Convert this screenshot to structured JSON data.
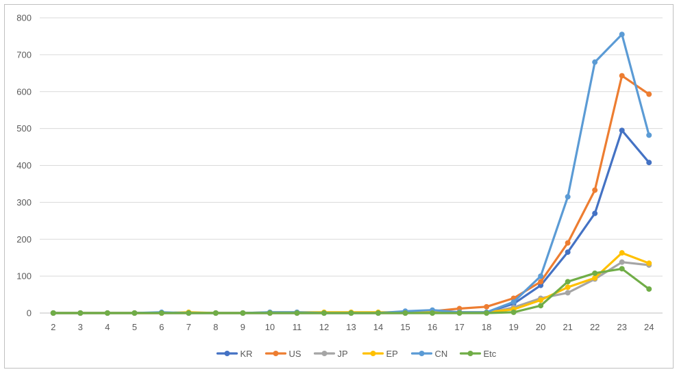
{
  "chart_data": {
    "type": "line",
    "title": "",
    "xlabel": "",
    "ylabel": "",
    "x": [
      "2",
      "3",
      "4",
      "5",
      "6",
      "7",
      "8",
      "9",
      "10",
      "11",
      "12",
      "13",
      "14",
      "15",
      "16",
      "17",
      "18",
      "19",
      "20",
      "21",
      "22",
      "23",
      "24"
    ],
    "ylim": [
      0,
      800
    ],
    "yticks": [
      0,
      100,
      200,
      300,
      400,
      500,
      600,
      700,
      800
    ],
    "grid": true,
    "legend_position": "bottom",
    "series": [
      {
        "name": "KR",
        "color": "#4472c4",
        "values": [
          0,
          0,
          0,
          0,
          0,
          0,
          0,
          0,
          0,
          0,
          0,
          0,
          0,
          0,
          5,
          2,
          2,
          25,
          75,
          165,
          270,
          495,
          408
        ]
      },
      {
        "name": "US",
        "color": "#ed7d31",
        "values": [
          0,
          0,
          0,
          0,
          0,
          0,
          0,
          0,
          0,
          0,
          0,
          0,
          0,
          0,
          5,
          12,
          17,
          40,
          85,
          190,
          333,
          643,
          593
        ]
      },
      {
        "name": "JP",
        "color": "#a5a5a5",
        "values": [
          0,
          0,
          0,
          0,
          0,
          0,
          0,
          0,
          0,
          0,
          0,
          0,
          0,
          0,
          0,
          0,
          0,
          15,
          40,
          55,
          92,
          138,
          130
        ]
      },
      {
        "name": "EP",
        "color": "#ffc000",
        "values": [
          0,
          0,
          0,
          0,
          0,
          2,
          0,
          0,
          2,
          2,
          2,
          2,
          2,
          2,
          2,
          2,
          2,
          10,
          35,
          70,
          95,
          163,
          135
        ]
      },
      {
        "name": "CN",
        "color": "#5b9bd5",
        "values": [
          0,
          0,
          0,
          0,
          2,
          0,
          0,
          0,
          2,
          2,
          0,
          0,
          0,
          5,
          8,
          2,
          2,
          30,
          100,
          315,
          680,
          755,
          482
        ]
      },
      {
        "name": "Etc",
        "color": "#70ad47",
        "values": [
          0,
          0,
          0,
          0,
          0,
          0,
          0,
          0,
          0,
          0,
          0,
          0,
          0,
          0,
          0,
          0,
          0,
          2,
          20,
          85,
          108,
          120,
          65
        ]
      }
    ]
  }
}
